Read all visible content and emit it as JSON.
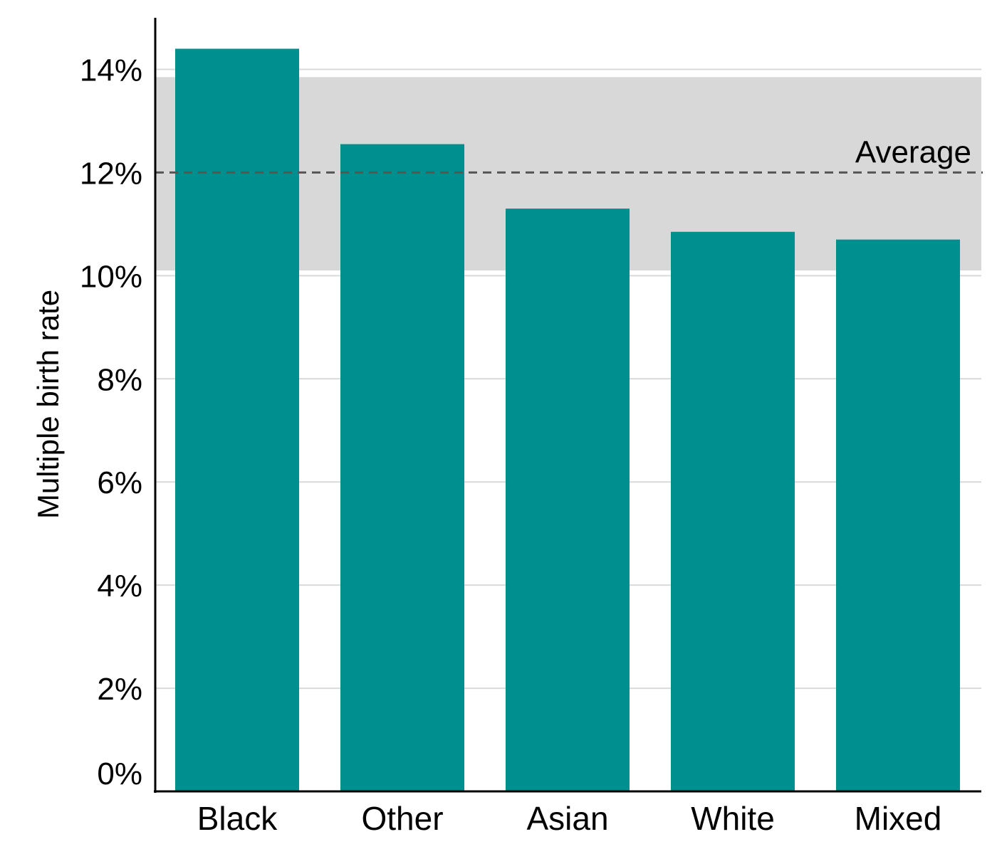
{
  "chart_data": {
    "type": "bar",
    "categories": [
      "Black",
      "Other",
      "Asian",
      "White",
      "Mixed"
    ],
    "values": [
      14.4,
      12.55,
      11.3,
      10.85,
      10.7
    ],
    "ylabel": "Multiple birth rate",
    "xlabel": "",
    "ylim": [
      0,
      15
    ],
    "yticks": [
      0,
      2,
      4,
      6,
      8,
      10,
      12,
      14
    ],
    "ytick_labels": [
      "0%",
      "2%",
      "4%",
      "6%",
      "8%",
      "10%",
      "12%",
      "14%"
    ],
    "grid": true,
    "average": {
      "label": "Average",
      "value": 12.0
    },
    "average_band": [
      10.1,
      13.85
    ],
    "colors": {
      "bar": "#008F8F",
      "band": "#D8D8D8",
      "average_line": "#555555",
      "grid": "#D9D9D9"
    }
  }
}
